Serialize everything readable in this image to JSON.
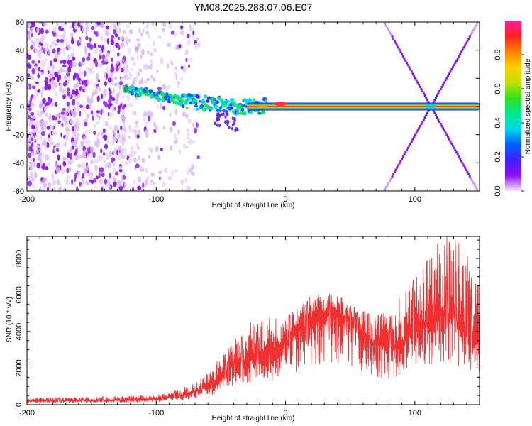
{
  "title": "YM08.2025.288.07.06.E07",
  "chart_data": [
    {
      "type": "heatmap",
      "xlabel": "Height of straight line (km)",
      "ylabel": "Frequency (Hz)",
      "xlim": [
        -200,
        150
      ],
      "ylim": [
        -60,
        60
      ],
      "xticks": [
        -200,
        -100,
        0,
        100
      ],
      "yticks": [
        -60,
        -40,
        -20,
        0,
        20,
        40,
        60
      ],
      "colorbar": {
        "label": "Normalized spectral amplitude",
        "range": [
          0,
          1
        ],
        "ticks": [
          "0.0",
          "0.2",
          "0.4",
          "0.6",
          "0.8"
        ],
        "colors": [
          "#f4e6fb",
          "#8e10f0",
          "#4020ff",
          "#0060ff",
          "#00d8e8",
          "#00e890",
          "#30e020",
          "#c0e000",
          "#ffd000",
          "#ff8000",
          "#ff2020",
          "#ff20a0"
        ]
      },
      "features": {
        "noise_region_km": [
          -200,
          -65
        ],
        "signal_band_freq_hz": 0,
        "signal_trend": [
          [
            -125,
            13
          ],
          [
            -100,
            8
          ],
          [
            -80,
            4
          ],
          [
            -60,
            2
          ],
          [
            -40,
            0
          ],
          [
            -20,
            0
          ],
          [
            0,
            2
          ],
          [
            10,
            0
          ],
          [
            150,
            0
          ]
        ],
        "aliased_lines": [
          [
            [
              75,
              62
            ],
            [
              150,
              -62
            ]
          ],
          [
            [
              75,
              -62
            ],
            [
              150,
              62
            ]
          ]
        ],
        "crossing_km": 112
      }
    },
    {
      "type": "line",
      "xlabel": "Height of straight line (km)",
      "ylabel": "SNR (10 * v/v)",
      "xlim": [
        -200,
        150
      ],
      "ylim": [
        0,
        9200
      ],
      "xticks": [
        -200,
        -100,
        0,
        100
      ],
      "yticks": [
        0,
        2000,
        4000,
        6000,
        8000
      ],
      "color": "#f03030",
      "series": [
        {
          "name": "SNR",
          "envelope_x": [
            -200,
            -150,
            -120,
            -100,
            -80,
            -70,
            -60,
            -50,
            -40,
            -30,
            -20,
            -10,
            0,
            10,
            20,
            30,
            40,
            50,
            60,
            70,
            80,
            90,
            100,
            110,
            120,
            130,
            140,
            150
          ],
          "envelope_y": [
            200,
            220,
            250,
            300,
            500,
            700,
            1000,
            1500,
            2200,
            2500,
            2800,
            3000,
            3400,
            4000,
            4600,
            5100,
            5100,
            4600,
            3900,
            3300,
            3100,
            3400,
            4300,
            4500,
            5100,
            4900,
            3700,
            3500
          ],
          "peak_y": [
            400,
            420,
            480,
            550,
            900,
            1200,
            1800,
            2700,
            3500,
            4500,
            4600,
            4800,
            4800,
            5400,
            5900,
            6300,
            6000,
            5600,
            5200,
            4900,
            5200,
            6000,
            7500,
            8100,
            9200,
            9100,
            8100,
            6800
          ]
        }
      ]
    }
  ]
}
